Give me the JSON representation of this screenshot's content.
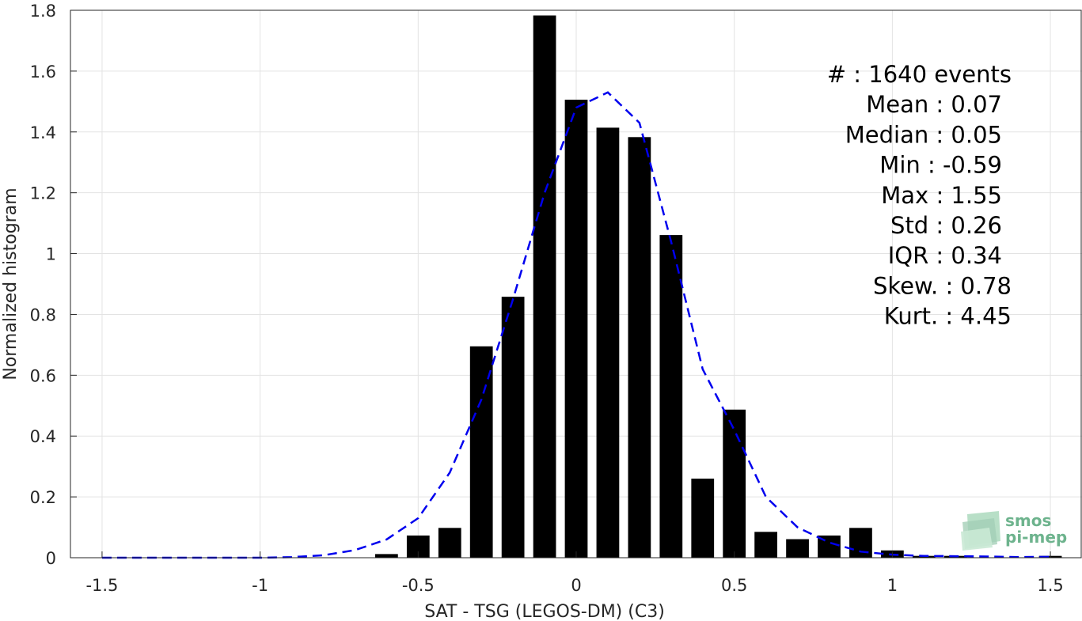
{
  "chart_data": {
    "type": "bar",
    "xlabel": "SAT - TSG (LEGOS-DM) (C3)",
    "ylabel": "Normalized histogram",
    "xlim": [
      -1.6,
      1.6
    ],
    "ylim": [
      0,
      1.8
    ],
    "grid": true,
    "xticks": [
      "-1.5",
      "-1",
      "-0.5",
      "0",
      "0.5",
      "1",
      "1.5"
    ],
    "yticks": [
      "0",
      "0.2",
      "0.4",
      "0.6",
      "0.8",
      "1",
      "1.2",
      "1.4",
      "1.6",
      "1.8"
    ],
    "bin_width": 0.1,
    "series": [
      {
        "kind": "bars",
        "color": "#000000",
        "x": [
          -0.6,
          -0.5,
          -0.4,
          -0.3,
          -0.2,
          -0.1,
          0.0,
          0.1,
          0.2,
          0.3,
          0.4,
          0.5,
          0.6,
          0.7,
          0.8,
          0.9,
          1.0,
          1.1,
          1.2,
          1.5
        ],
        "values": [
          0.012,
          0.073,
          0.098,
          0.695,
          0.858,
          1.783,
          1.506,
          1.414,
          1.383,
          1.061,
          0.26,
          0.487,
          0.085,
          0.061,
          0.073,
          0.098,
          0.024,
          0.006,
          0.006,
          0.006
        ]
      },
      {
        "kind": "fit",
        "color": "#0000ee",
        "style": "dashed",
        "x": [
          -1.5,
          -1.4,
          -1.3,
          -1.2,
          -1.1,
          -1.0,
          -0.9,
          -0.8,
          -0.7,
          -0.6,
          -0.5,
          -0.4,
          -0.3,
          -0.2,
          -0.1,
          0.0,
          0.1,
          0.2,
          0.3,
          0.4,
          0.5,
          0.6,
          0.7,
          0.8,
          0.9,
          1.0,
          1.1,
          1.2,
          1.3,
          1.4,
          1.5
        ],
        "values": [
          0.0,
          0.0,
          0.0,
          0.0,
          0.0,
          0.0,
          0.002,
          0.008,
          0.025,
          0.06,
          0.13,
          0.28,
          0.52,
          0.85,
          1.2,
          1.48,
          1.53,
          1.43,
          1.04,
          0.62,
          0.42,
          0.2,
          0.1,
          0.05,
          0.02,
          0.01,
          0.006,
          0.005,
          0.004,
          0.002,
          0.003
        ]
      }
    ],
    "annotations": [
      "#  : 1640 events",
      "Mean : 0.07",
      "Median : 0.05",
      "Min : -0.59",
      "Max : 1.55",
      "Std : 0.26",
      "IQR : 0.34",
      "Skew. : 0.78",
      "Kurt. : 4.45"
    ]
  },
  "logo": {
    "line1": "smos",
    "line2": "pi-mep",
    "color": "#6db38d"
  }
}
